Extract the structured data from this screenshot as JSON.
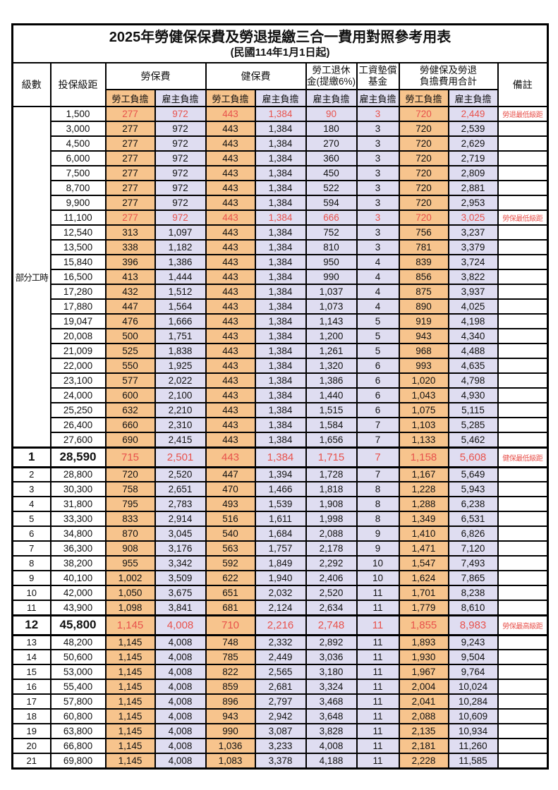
{
  "title": {
    "line1": "2025年勞健保保費及勞退提繳三合一費用對照參考用表",
    "line2": "(民國114年1月1日起)"
  },
  "table": {
    "headers": {
      "level": "級數",
      "bracket": "投保級距",
      "labor_fee": "勞保費",
      "health_fee": "健保費",
      "pension_line1": "勞工退休",
      "pension_line2": "金(提繳6%)",
      "wage_fund_line1": "工資墊償",
      "wage_fund_line2": "基金",
      "total_line1": "勞健保及勞退",
      "total_line2": "負擔費用合計",
      "remark": "備註",
      "worker": "勞工負擔",
      "employer": "雇主負擔"
    },
    "column_pattern": [
      "worker",
      "employer",
      "worker",
      "employer",
      "employer",
      "employer",
      "worker",
      "employer"
    ],
    "part_time_group": {
      "label": "部分工時",
      "row_count": 23
    },
    "colors": {
      "worker_bg": "#f7c48d",
      "employer_bg": "#dfddf1",
      "highlight_text": "#e8524c"
    },
    "rows": [
      {
        "level": "",
        "bracket": "1,500",
        "values": [
          "277",
          "972",
          "443",
          "1,384",
          "90",
          "3",
          "720",
          "2,449"
        ],
        "remark": "勞退最低級距",
        "highlight": true,
        "emphasis": false
      },
      {
        "level": "",
        "bracket": "3,000",
        "values": [
          "277",
          "972",
          "443",
          "1,384",
          "180",
          "3",
          "720",
          "2,539"
        ],
        "remark": "",
        "highlight": false,
        "emphasis": false
      },
      {
        "level": "",
        "bracket": "4,500",
        "values": [
          "277",
          "972",
          "443",
          "1,384",
          "270",
          "3",
          "720",
          "2,629"
        ],
        "remark": "",
        "highlight": false,
        "emphasis": false
      },
      {
        "level": "",
        "bracket": "6,000",
        "values": [
          "277",
          "972",
          "443",
          "1,384",
          "360",
          "3",
          "720",
          "2,719"
        ],
        "remark": "",
        "highlight": false,
        "emphasis": false
      },
      {
        "level": "",
        "bracket": "7,500",
        "values": [
          "277",
          "972",
          "443",
          "1,384",
          "450",
          "3",
          "720",
          "2,809"
        ],
        "remark": "",
        "highlight": false,
        "emphasis": false
      },
      {
        "level": "",
        "bracket": "8,700",
        "values": [
          "277",
          "972",
          "443",
          "1,384",
          "522",
          "3",
          "720",
          "2,881"
        ],
        "remark": "",
        "highlight": false,
        "emphasis": false
      },
      {
        "level": "",
        "bracket": "9,900",
        "values": [
          "277",
          "972",
          "443",
          "1,384",
          "594",
          "3",
          "720",
          "2,953"
        ],
        "remark": "",
        "highlight": false,
        "emphasis": false
      },
      {
        "level": "",
        "bracket": "11,100",
        "values": [
          "277",
          "972",
          "443",
          "1,384",
          "666",
          "3",
          "720",
          "3,025"
        ],
        "remark": "勞保最低級距",
        "highlight": true,
        "emphasis": false
      },
      {
        "level": "",
        "bracket": "12,540",
        "values": [
          "313",
          "1,097",
          "443",
          "1,384",
          "752",
          "3",
          "756",
          "3,237"
        ],
        "remark": "",
        "highlight": false,
        "emphasis": false
      },
      {
        "level": "",
        "bracket": "13,500",
        "values": [
          "338",
          "1,182",
          "443",
          "1,384",
          "810",
          "3",
          "781",
          "3,379"
        ],
        "remark": "",
        "highlight": false,
        "emphasis": false
      },
      {
        "level": "",
        "bracket": "15,840",
        "values": [
          "396",
          "1,386",
          "443",
          "1,384",
          "950",
          "4",
          "839",
          "3,724"
        ],
        "remark": "",
        "highlight": false,
        "emphasis": false
      },
      {
        "level": "",
        "bracket": "16,500",
        "values": [
          "413",
          "1,444",
          "443",
          "1,384",
          "990",
          "4",
          "856",
          "3,822"
        ],
        "remark": "",
        "highlight": false,
        "emphasis": false
      },
      {
        "level": "",
        "bracket": "17,280",
        "values": [
          "432",
          "1,512",
          "443",
          "1,384",
          "1,037",
          "4",
          "875",
          "3,937"
        ],
        "remark": "",
        "highlight": false,
        "emphasis": false
      },
      {
        "level": "",
        "bracket": "17,880",
        "values": [
          "447",
          "1,564",
          "443",
          "1,384",
          "1,073",
          "4",
          "890",
          "4,025"
        ],
        "remark": "",
        "highlight": false,
        "emphasis": false
      },
      {
        "level": "",
        "bracket": "19,047",
        "values": [
          "476",
          "1,666",
          "443",
          "1,384",
          "1,143",
          "5",
          "919",
          "4,198"
        ],
        "remark": "",
        "highlight": false,
        "emphasis": false
      },
      {
        "level": "",
        "bracket": "20,008",
        "values": [
          "500",
          "1,751",
          "443",
          "1,384",
          "1,200",
          "5",
          "943",
          "4,340"
        ],
        "remark": "",
        "highlight": false,
        "emphasis": false
      },
      {
        "level": "",
        "bracket": "21,009",
        "values": [
          "525",
          "1,838",
          "443",
          "1,384",
          "1,261",
          "5",
          "968",
          "4,488"
        ],
        "remark": "",
        "highlight": false,
        "emphasis": false
      },
      {
        "level": "",
        "bracket": "22,000",
        "values": [
          "550",
          "1,925",
          "443",
          "1,384",
          "1,320",
          "6",
          "993",
          "4,635"
        ],
        "remark": "",
        "highlight": false,
        "emphasis": false
      },
      {
        "level": "",
        "bracket": "23,100",
        "values": [
          "577",
          "2,022",
          "443",
          "1,384",
          "1,386",
          "6",
          "1,020",
          "4,798"
        ],
        "remark": "",
        "highlight": false,
        "emphasis": false
      },
      {
        "level": "",
        "bracket": "24,000",
        "values": [
          "600",
          "2,100",
          "443",
          "1,384",
          "1,440",
          "6",
          "1,043",
          "4,930"
        ],
        "remark": "",
        "highlight": false,
        "emphasis": false
      },
      {
        "level": "",
        "bracket": "25,250",
        "values": [
          "632",
          "2,210",
          "443",
          "1,384",
          "1,515",
          "6",
          "1,075",
          "5,115"
        ],
        "remark": "",
        "highlight": false,
        "emphasis": false
      },
      {
        "level": "",
        "bracket": "26,400",
        "values": [
          "660",
          "2,310",
          "443",
          "1,384",
          "1,584",
          "7",
          "1,103",
          "5,285"
        ],
        "remark": "",
        "highlight": false,
        "emphasis": false
      },
      {
        "level": "",
        "bracket": "27,600",
        "values": [
          "690",
          "2,415",
          "443",
          "1,384",
          "1,656",
          "7",
          "1,133",
          "5,462"
        ],
        "remark": "",
        "highlight": false,
        "emphasis": false
      },
      {
        "level": "1",
        "bracket": "28,590",
        "values": [
          "715",
          "2,501",
          "443",
          "1,384",
          "1,715",
          "7",
          "1,158",
          "5,608"
        ],
        "remark": "健保最低級距",
        "highlight": true,
        "emphasis": true
      },
      {
        "level": "2",
        "bracket": "28,800",
        "values": [
          "720",
          "2,520",
          "447",
          "1,394",
          "1,728",
          "7",
          "1,167",
          "5,649"
        ],
        "remark": "",
        "highlight": false,
        "emphasis": false
      },
      {
        "level": "3",
        "bracket": "30,300",
        "values": [
          "758",
          "2,651",
          "470",
          "1,466",
          "1,818",
          "8",
          "1,228",
          "5,943"
        ],
        "remark": "",
        "highlight": false,
        "emphasis": false
      },
      {
        "level": "4",
        "bracket": "31,800",
        "values": [
          "795",
          "2,783",
          "493",
          "1,539",
          "1,908",
          "8",
          "1,288",
          "6,238"
        ],
        "remark": "",
        "highlight": false,
        "emphasis": false
      },
      {
        "level": "5",
        "bracket": "33,300",
        "values": [
          "833",
          "2,914",
          "516",
          "1,611",
          "1,998",
          "8",
          "1,349",
          "6,531"
        ],
        "remark": "",
        "highlight": false,
        "emphasis": false
      },
      {
        "level": "6",
        "bracket": "34,800",
        "values": [
          "870",
          "3,045",
          "540",
          "1,684",
          "2,088",
          "9",
          "1,410",
          "6,826"
        ],
        "remark": "",
        "highlight": false,
        "emphasis": false
      },
      {
        "level": "7",
        "bracket": "36,300",
        "values": [
          "908",
          "3,176",
          "563",
          "1,757",
          "2,178",
          "9",
          "1,471",
          "7,120"
        ],
        "remark": "",
        "highlight": false,
        "emphasis": false
      },
      {
        "level": "8",
        "bracket": "38,200",
        "values": [
          "955",
          "3,342",
          "592",
          "1,849",
          "2,292",
          "10",
          "1,547",
          "7,493"
        ],
        "remark": "",
        "highlight": false,
        "emphasis": false
      },
      {
        "level": "9",
        "bracket": "40,100",
        "values": [
          "1,002",
          "3,509",
          "622",
          "1,940",
          "2,406",
          "10",
          "1,624",
          "7,865"
        ],
        "remark": "",
        "highlight": false,
        "emphasis": false
      },
      {
        "level": "10",
        "bracket": "42,000",
        "values": [
          "1,050",
          "3,675",
          "651",
          "2,032",
          "2,520",
          "11",
          "1,701",
          "8,238"
        ],
        "remark": "",
        "highlight": false,
        "emphasis": false
      },
      {
        "level": "11",
        "bracket": "43,900",
        "values": [
          "1,098",
          "3,841",
          "681",
          "2,124",
          "2,634",
          "11",
          "1,779",
          "8,610"
        ],
        "remark": "",
        "highlight": false,
        "emphasis": false
      },
      {
        "level": "12",
        "bracket": "45,800",
        "values": [
          "1,145",
          "4,008",
          "710",
          "2,216",
          "2,748",
          "11",
          "1,855",
          "8,983"
        ],
        "remark": "勞保最高級距",
        "highlight": true,
        "emphasis": true
      },
      {
        "level": "13",
        "bracket": "48,200",
        "values": [
          "1,145",
          "4,008",
          "748",
          "2,332",
          "2,892",
          "11",
          "1,893",
          "9,243"
        ],
        "remark": "",
        "highlight": false,
        "emphasis": false
      },
      {
        "level": "14",
        "bracket": "50,600",
        "values": [
          "1,145",
          "4,008",
          "785",
          "2,449",
          "3,036",
          "11",
          "1,930",
          "9,504"
        ],
        "remark": "",
        "highlight": false,
        "emphasis": false
      },
      {
        "level": "15",
        "bracket": "53,000",
        "values": [
          "1,145",
          "4,008",
          "822",
          "2,565",
          "3,180",
          "11",
          "1,967",
          "9,764"
        ],
        "remark": "",
        "highlight": false,
        "emphasis": false
      },
      {
        "level": "16",
        "bracket": "55,400",
        "values": [
          "1,145",
          "4,008",
          "859",
          "2,681",
          "3,324",
          "11",
          "2,004",
          "10,024"
        ],
        "remark": "",
        "highlight": false,
        "emphasis": false
      },
      {
        "level": "17",
        "bracket": "57,800",
        "values": [
          "1,145",
          "4,008",
          "896",
          "2,797",
          "3,468",
          "11",
          "2,041",
          "10,284"
        ],
        "remark": "",
        "highlight": false,
        "emphasis": false
      },
      {
        "level": "18",
        "bracket": "60,800",
        "values": [
          "1,145",
          "4,008",
          "943",
          "2,942",
          "3,648",
          "11",
          "2,088",
          "10,609"
        ],
        "remark": "",
        "highlight": false,
        "emphasis": false
      },
      {
        "level": "19",
        "bracket": "63,800",
        "values": [
          "1,145",
          "4,008",
          "990",
          "3,087",
          "3,828",
          "11",
          "2,135",
          "10,934"
        ],
        "remark": "",
        "highlight": false,
        "emphasis": false
      },
      {
        "level": "20",
        "bracket": "66,800",
        "values": [
          "1,145",
          "4,008",
          "1,036",
          "3,233",
          "4,008",
          "11",
          "2,181",
          "11,260"
        ],
        "remark": "",
        "highlight": false,
        "emphasis": false
      },
      {
        "level": "21",
        "bracket": "69,800",
        "values": [
          "1,145",
          "4,008",
          "1,083",
          "3,378",
          "4,188",
          "11",
          "2,228",
          "11,585"
        ],
        "remark": "",
        "highlight": false,
        "emphasis": false
      }
    ]
  }
}
